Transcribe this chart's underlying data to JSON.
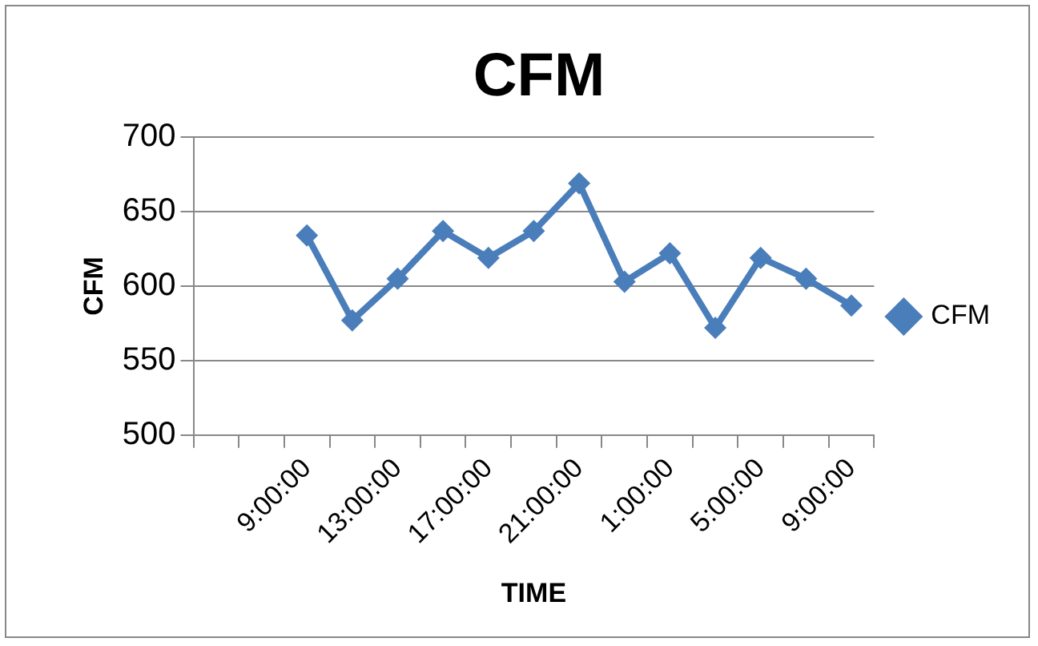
{
  "chart_data": {
    "type": "line",
    "title": "CFM",
    "xlabel": "TIME",
    "ylabel": "CFM",
    "categories": [
      null,
      null,
      "9:00:00",
      null,
      "13:00:00",
      null,
      "17:00:00",
      null,
      "21:00:00",
      null,
      "1:00:00",
      null,
      "5:00:00",
      null,
      "9:00:00"
    ],
    "series": [
      {
        "name": "CFM",
        "color": "#4a7ebb",
        "values": [
          null,
          null,
          634,
          577,
          605,
          637,
          619,
          637,
          669,
          603,
          622,
          572,
          619,
          605,
          587
        ]
      }
    ],
    "ylim": [
      500,
      700
    ],
    "yticks": [
      500,
      550,
      600,
      650,
      700
    ],
    "grid": "y",
    "legend": "right",
    "marker": "diamond",
    "line_style": "solid"
  }
}
